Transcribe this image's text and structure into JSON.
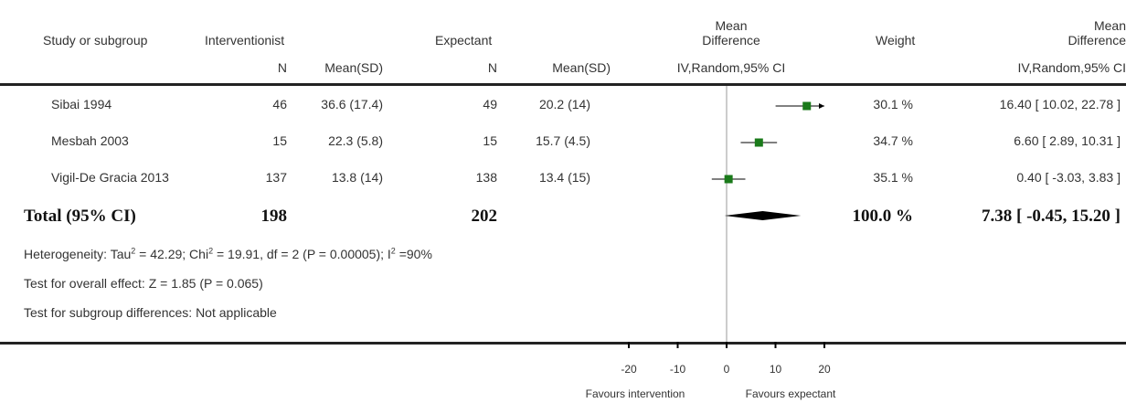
{
  "header": {
    "study": "Study or subgroup",
    "group1": "Interventionist",
    "group2": "Expectant",
    "n1": "N",
    "mean1": "Mean(SD)",
    "n2": "N",
    "mean2": "Mean(SD)",
    "md_plot_line1": "Mean",
    "md_plot_line2": "Difference",
    "md_plot_method": "IV,Random,95% CI",
    "weight": "Weight",
    "md_text_line1": "Mean",
    "md_text_line2": "Difference",
    "md_text_method": "IV,Random,95% CI"
  },
  "studies": [
    {
      "name": "Sibai 1994",
      "n1": "46",
      "mean1": "36.6 (17.4)",
      "n2": "49",
      "mean2": "20.2 (14)",
      "weight": "30.1 %",
      "ci_text": "16.40 [ 10.02, 22.78 ]"
    },
    {
      "name": "Mesbah 2003",
      "n1": "15",
      "mean1": "22.3 (5.8)",
      "n2": "15",
      "mean2": "15.7 (4.5)",
      "weight": "34.7 %",
      "ci_text": "6.60 [ 2.89, 10.31 ]"
    },
    {
      "name": "Vigil-De Gracia 2013",
      "n1": "137",
      "mean1": "13.8 (14)",
      "n2": "138",
      "mean2": "13.4 (15)",
      "weight": "35.1 %",
      "ci_text": "0.40 [ -3.03, 3.83 ]"
    }
  ],
  "total": {
    "label": "Total (95% CI)",
    "n1": "198",
    "n2": "202",
    "weight": "100.0 %",
    "ci_text": "7.38 [ -0.45, 15.20 ]"
  },
  "notes": {
    "heterogeneity_prefix": "Heterogeneity: Tau",
    "heterogeneity_tau_sup": "2",
    "heterogeneity_mid": " = 42.29; Chi",
    "heterogeneity_chi_sup": "2",
    "heterogeneity_mid2": " = 19.91, df = 2 (P = 0.00005); I",
    "heterogeneity_i_sup": "2",
    "heterogeneity_end": " =90%",
    "overall_effect": "Test for overall effect: Z = 1.85 (P = 0.065)",
    "subgroup": "Test for subgroup differences: Not applicable"
  },
  "axis": {
    "favours_left": "Favours intervention",
    "favours_right": "Favours expectant"
  },
  "chart_data": {
    "type": "forest",
    "x_axis": {
      "min": -20,
      "max": 20,
      "ticks": [
        -20,
        -10,
        0,
        10,
        20
      ],
      "tick_labels": [
        "-20",
        "-10",
        "0",
        "10",
        "20"
      ]
    },
    "plot_clip": [
      -20,
      20
    ],
    "studies": [
      {
        "mean": 16.4,
        "lower": 10.02,
        "upper": 22.78,
        "weight": 30.1
      },
      {
        "mean": 6.6,
        "lower": 2.89,
        "upper": 10.31,
        "weight": 34.7
      },
      {
        "mean": 0.4,
        "lower": -3.03,
        "upper": 3.83,
        "weight": 35.1
      }
    ],
    "pooled": {
      "mean": 7.38,
      "lower": -0.45,
      "upper": 15.2
    },
    "colors": {
      "marker": "#1a7a1a",
      "line": "#000000",
      "null_line": "#999999"
    }
  }
}
